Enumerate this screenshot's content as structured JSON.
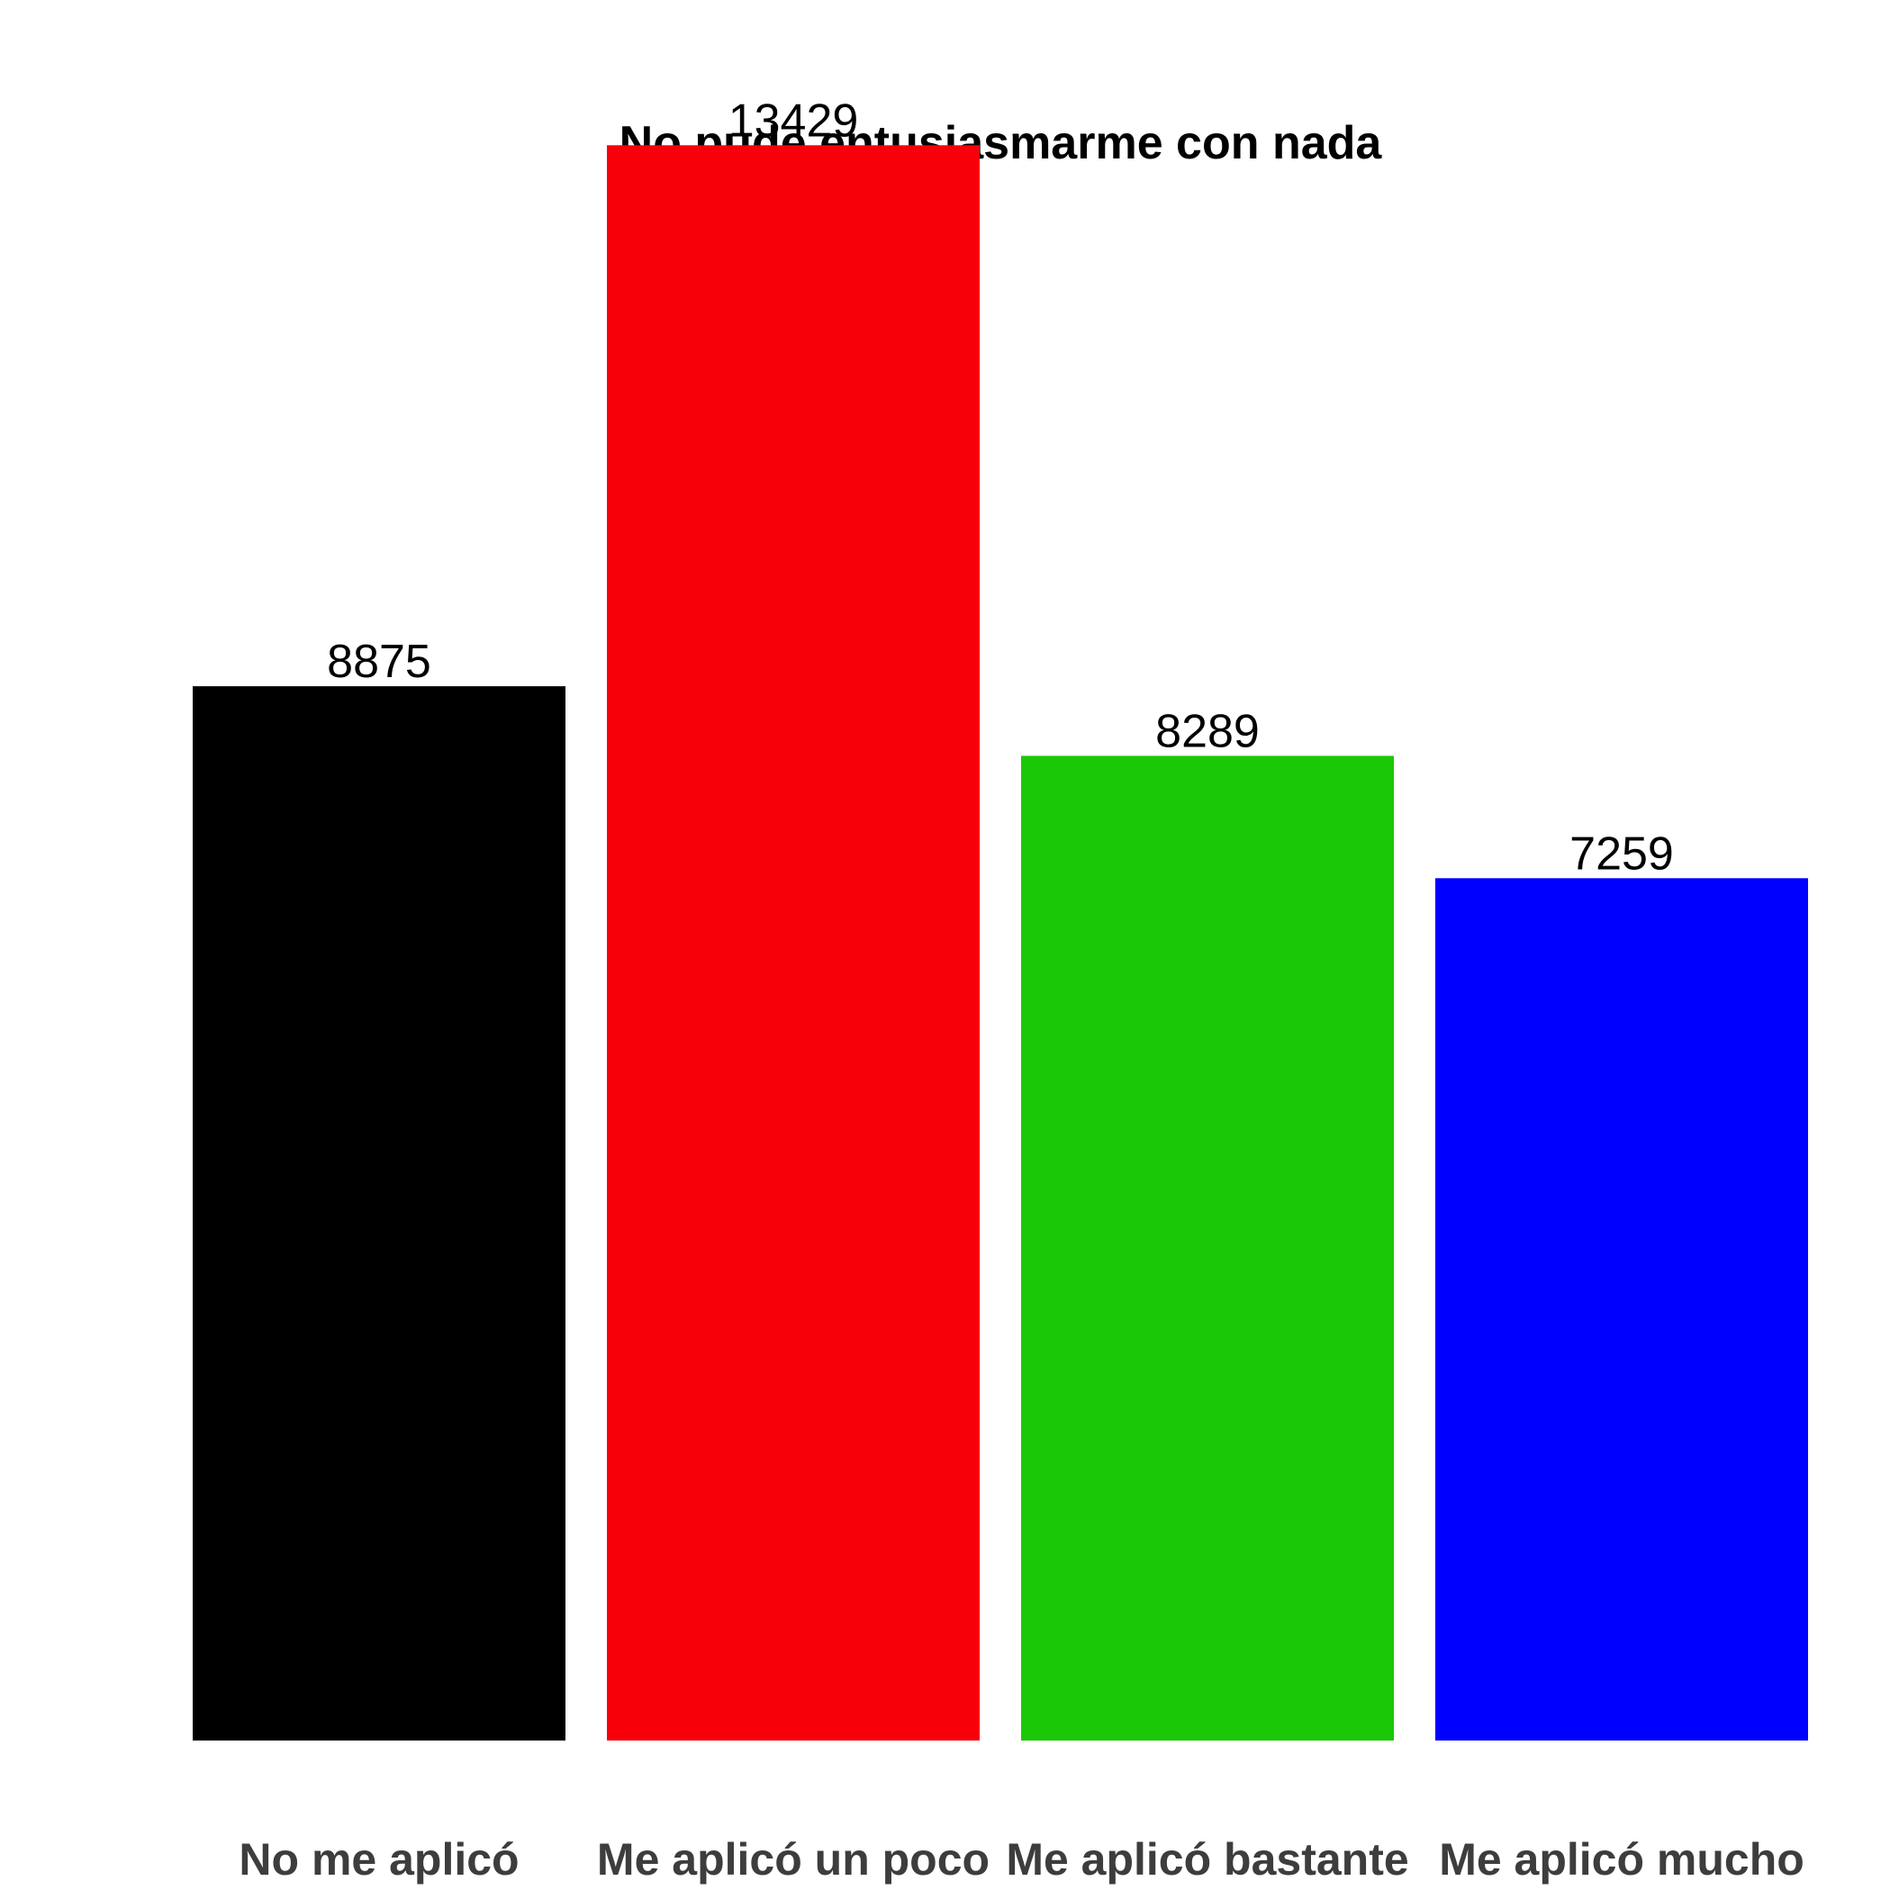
{
  "chart_data": {
    "type": "bar",
    "title": "No pude entusiasmarme con nada",
    "xlabel": "",
    "ylabel": "",
    "categories": [
      "No me aplicó",
      "Me aplicó un poco",
      "Me aplicó bastante",
      "Me aplicó mucho"
    ],
    "values": [
      8875,
      13429,
      8289,
      7259
    ],
    "colors": [
      "#000000",
      "#f8000a",
      "#1bc806",
      "#0000ff"
    ],
    "ylim": [
      0,
      14500
    ],
    "grid": false,
    "legend": "none",
    "value_labels": [
      "8875",
      "13429",
      "8289",
      "7259"
    ]
  }
}
